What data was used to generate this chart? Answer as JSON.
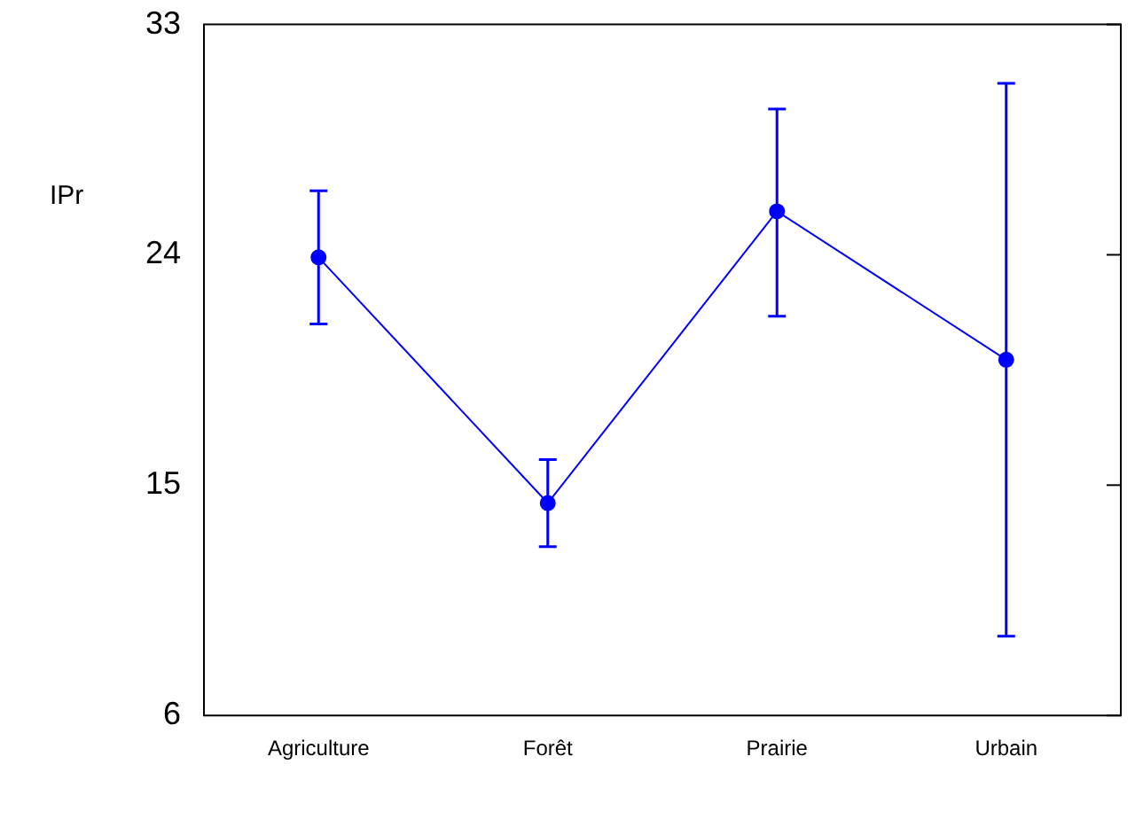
{
  "chart_data": {
    "type": "line",
    "ylabel": "IPr",
    "categories": [
      "Agriculture",
      "Forêt",
      "Prairie",
      "Urbain"
    ],
    "series": [
      {
        "color": "#0000ff",
        "values": [
          23.9,
          14.3,
          25.7,
          19.9
        ],
        "errors": [
          [
            21.3,
            26.5
          ],
          [
            12.6,
            16.0
          ],
          [
            21.6,
            29.7
          ],
          [
            9.1,
            30.7
          ]
        ]
      }
    ],
    "ylim": [
      6,
      33
    ],
    "yticks": [
      6,
      15,
      24,
      33
    ],
    "grid": false,
    "legend": false,
    "marker": "circle",
    "line_style": "solid"
  }
}
